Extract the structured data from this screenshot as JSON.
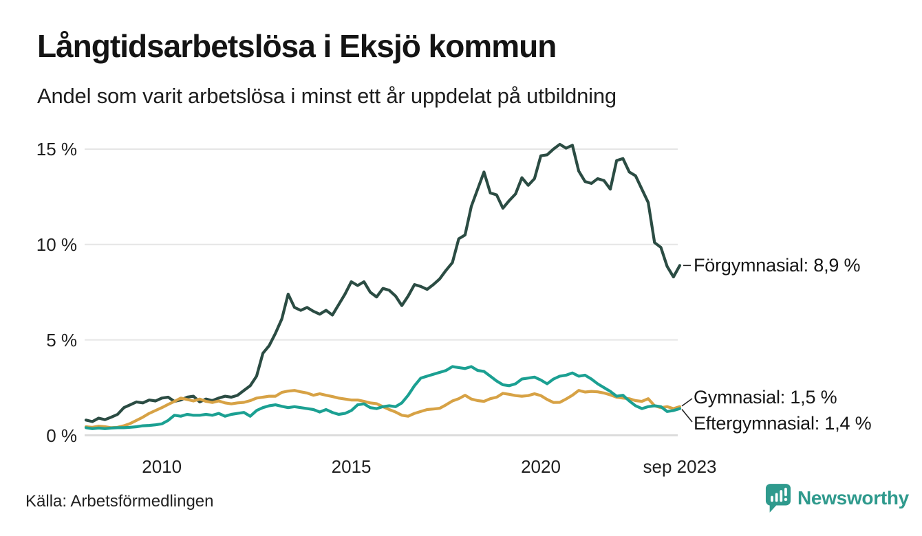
{
  "header": {
    "title": "Långtidsarbetslösa i Eksjö kommun",
    "subtitle": "Andel som varit arbetslösa i minst ett år uppdelat på utbildning"
  },
  "chart_data": {
    "type": "line",
    "title": "Långtidsarbetslösa i Eksjö kommun",
    "subtitle": "Andel som varit arbetslösa i minst ett år uppdelat på utbildning",
    "x_start": "2008-01",
    "x_end": "2023-09",
    "points_interval_months": 2,
    "ylim": [
      0,
      15.5
    ],
    "grid": "horizontal",
    "legend_position": "end-of-line labels",
    "unit": "%",
    "y_ticks": [
      {
        "value": 15,
        "label": "15 %"
      },
      {
        "value": 10,
        "label": "10 %"
      },
      {
        "value": 5,
        "label": "5 %"
      },
      {
        "value": 0,
        "label": "0 %"
      }
    ],
    "x_ticks": [
      {
        "year": 2010,
        "label": "2010"
      },
      {
        "year": 2015,
        "label": "2015"
      },
      {
        "year": 2020,
        "label": "2020"
      },
      {
        "year": 2023.667,
        "label": "sep 2023"
      }
    ],
    "series": [
      {
        "name": "Förgymnasial",
        "color": "#2b4c43",
        "end_label": "Förgymnasial: 8,9 %",
        "end_value": 8.9,
        "values": [
          0.8,
          0.72,
          0.9,
          0.82,
          0.95,
          1.1,
          1.45,
          1.6,
          1.75,
          1.7,
          1.85,
          1.8,
          1.95,
          2.0,
          1.78,
          1.85,
          2.0,
          2.05,
          1.75,
          1.9,
          1.82,
          1.95,
          2.05,
          2.0,
          2.1,
          2.35,
          2.6,
          3.1,
          4.3,
          4.7,
          5.35,
          6.1,
          7.4,
          6.7,
          6.55,
          6.7,
          6.5,
          6.35,
          6.55,
          6.3,
          6.85,
          7.4,
          8.05,
          7.85,
          8.05,
          7.5,
          7.25,
          7.7,
          7.6,
          7.3,
          6.8,
          7.3,
          7.9,
          7.8,
          7.65,
          7.9,
          8.2,
          8.65,
          9.05,
          10.3,
          10.5,
          12.0,
          12.9,
          13.8,
          12.7,
          12.6,
          11.9,
          12.3,
          12.65,
          13.5,
          13.1,
          13.45,
          14.65,
          14.7,
          15.0,
          15.25,
          15.05,
          15.2,
          13.85,
          13.3,
          13.2,
          13.45,
          13.35,
          12.9,
          14.4,
          14.5,
          13.8,
          13.6,
          12.9,
          12.2,
          10.1,
          9.85,
          8.85,
          8.3,
          8.9
        ]
      },
      {
        "name": "Gymnasial",
        "color": "#d7a245",
        "end_label": "Gymnasial: 1,5 %",
        "end_value": 1.5,
        "values": [
          0.45,
          0.42,
          0.48,
          0.45,
          0.4,
          0.42,
          0.5,
          0.62,
          0.78,
          0.95,
          1.15,
          1.3,
          1.45,
          1.62,
          1.78,
          1.95,
          1.88,
          1.8,
          1.9,
          1.78,
          1.72,
          1.8,
          1.7,
          1.65,
          1.7,
          1.73,
          1.82,
          1.95,
          2.0,
          2.05,
          2.05,
          2.25,
          2.32,
          2.35,
          2.28,
          2.22,
          2.1,
          2.18,
          2.1,
          2.03,
          1.95,
          1.9,
          1.85,
          1.85,
          1.78,
          1.7,
          1.66,
          1.5,
          1.35,
          1.22,
          1.05,
          1.0,
          1.15,
          1.25,
          1.35,
          1.38,
          1.42,
          1.6,
          1.8,
          1.92,
          2.1,
          1.9,
          1.82,
          1.78,
          1.92,
          2.0,
          2.2,
          2.15,
          2.08,
          2.05,
          2.08,
          2.18,
          2.08,
          1.88,
          1.72,
          1.73,
          1.9,
          2.1,
          2.35,
          2.27,
          2.3,
          2.28,
          2.22,
          2.12,
          2.0,
          1.95,
          1.92,
          1.82,
          1.78,
          1.92,
          1.55,
          1.45,
          1.5,
          1.4,
          1.5
        ]
      },
      {
        "name": "Eftergymnasial",
        "color": "#1ba092",
        "end_label": "Eftergymnasial: 1,4 %",
        "end_value": 1.4,
        "values": [
          0.4,
          0.35,
          0.38,
          0.35,
          0.38,
          0.4,
          0.4,
          0.42,
          0.45,
          0.5,
          0.52,
          0.55,
          0.6,
          0.78,
          1.05,
          1.0,
          1.1,
          1.05,
          1.05,
          1.1,
          1.05,
          1.15,
          1.0,
          1.1,
          1.15,
          1.2,
          1.0,
          1.3,
          1.45,
          1.55,
          1.6,
          1.52,
          1.45,
          1.5,
          1.45,
          1.4,
          1.35,
          1.22,
          1.35,
          1.2,
          1.1,
          1.15,
          1.3,
          1.6,
          1.65,
          1.45,
          1.4,
          1.5,
          1.55,
          1.5,
          1.7,
          2.1,
          2.6,
          3.0,
          3.1,
          3.2,
          3.3,
          3.4,
          3.6,
          3.55,
          3.5,
          3.6,
          3.4,
          3.35,
          3.1,
          2.85,
          2.65,
          2.6,
          2.7,
          2.95,
          3.0,
          3.05,
          2.9,
          2.7,
          2.95,
          3.1,
          3.15,
          3.27,
          3.1,
          3.15,
          2.95,
          2.7,
          2.5,
          2.3,
          2.05,
          2.1,
          1.8,
          1.55,
          1.4,
          1.5,
          1.55,
          1.5,
          1.25,
          1.3,
          1.4
        ]
      }
    ]
  },
  "footer": {
    "source": "Källa: Arbetsförmedlingen",
    "brand": "Newsworthy",
    "brand_color": "#2f9a8d"
  }
}
